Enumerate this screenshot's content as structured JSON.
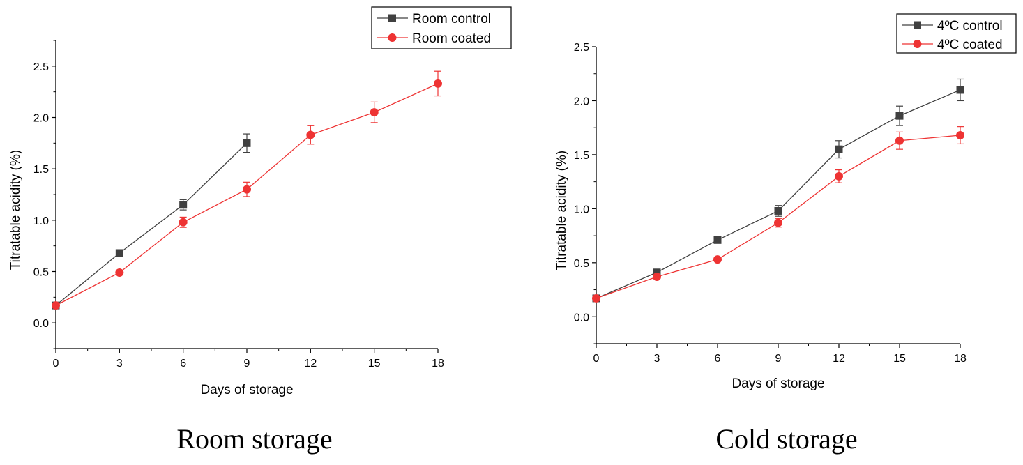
{
  "charts": [
    {
      "id": "room",
      "caption": "Room storage",
      "chart_data": {
        "type": "line",
        "title": "",
        "xlabel": "Days of storage",
        "ylabel": "Titratable acidity (%)",
        "xlim": [
          0,
          18
        ],
        "ylim": [
          -0.25,
          2.75
        ],
        "xticks": [
          "0",
          "3",
          "6",
          "9",
          "12",
          "15",
          "18"
        ],
        "yticks": [
          "0.0",
          "0.5",
          "1.0",
          "1.5",
          "2.0",
          "2.5"
        ],
        "legend_position": "top-right",
        "series": [
          {
            "name": "Room control",
            "color": "#404040",
            "marker": "square",
            "x": [
              0,
              3,
              6,
              9
            ],
            "y": [
              0.17,
              0.68,
              1.15,
              1.75
            ],
            "err": [
              0.02,
              0.02,
              0.05,
              0.09
            ]
          },
          {
            "name": "Room coated",
            "color": "#ee3333",
            "marker": "circle",
            "x": [
              0,
              3,
              6,
              9,
              12,
              15,
              18
            ],
            "y": [
              0.17,
              0.49,
              0.98,
              1.3,
              1.83,
              2.05,
              2.33
            ],
            "err": [
              0.02,
              0.02,
              0.05,
              0.07,
              0.09,
              0.1,
              0.12
            ]
          }
        ]
      }
    },
    {
      "id": "cold",
      "caption": "Cold storage",
      "chart_data": {
        "type": "line",
        "title": "",
        "xlabel": "Days of storage",
        "ylabel": "Titratable acidity (%)",
        "xlim": [
          0,
          18
        ],
        "ylim": [
          -0.25,
          2.5
        ],
        "xticks": [
          "0",
          "3",
          "6",
          "9",
          "12",
          "15",
          "18"
        ],
        "yticks": [
          "0.0",
          "0.5",
          "1.0",
          "1.5",
          "2.0",
          "2.5"
        ],
        "legend_position": "top-right",
        "series": [
          {
            "name": "4ºC control",
            "color": "#404040",
            "marker": "square",
            "x": [
              0,
              3,
              6,
              9,
              12,
              15,
              18
            ],
            "y": [
              0.17,
              0.41,
              0.71,
              0.98,
              1.55,
              1.86,
              2.1
            ],
            "err": [
              0.01,
              0.01,
              0.03,
              0.05,
              0.08,
              0.09,
              0.1
            ]
          },
          {
            "name": "4ºC coated",
            "color": "#ee3333",
            "marker": "circle",
            "x": [
              0,
              3,
              6,
              9,
              12,
              15,
              18
            ],
            "y": [
              0.17,
              0.37,
              0.53,
              0.87,
              1.3,
              1.63,
              1.68
            ],
            "err": [
              0.01,
              0.01,
              0.01,
              0.04,
              0.06,
              0.08,
              0.08
            ]
          }
        ]
      }
    }
  ]
}
